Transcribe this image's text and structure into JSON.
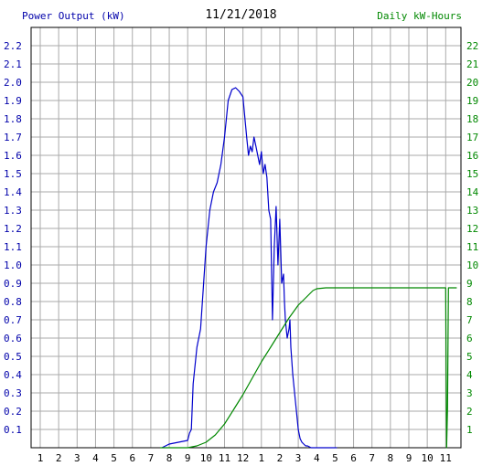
{
  "header": {
    "left_title": "Power Output (kW)",
    "date": "11/21/2018",
    "right_title": "Daily kW-Hours"
  },
  "colors": {
    "power": "#0000cc",
    "energy": "#008800",
    "grid": "#aaaaaa",
    "left_axis_text": "#0000aa",
    "right_axis_text": "#008800"
  },
  "chart_data": {
    "type": "line",
    "title": "11/21/2018",
    "grid": true,
    "x_ticks": [
      "1",
      "2",
      "3",
      "4",
      "5",
      "6",
      "7",
      "8",
      "9",
      "10",
      "11",
      "12",
      "1",
      "2",
      "3",
      "4",
      "5",
      "6",
      "7",
      "8",
      "9",
      "10",
      "11"
    ],
    "y_left": {
      "label": "Power Output (kW)",
      "ylim": [
        0,
        2.3
      ],
      "ticks": [
        "0.1",
        "0.2",
        "0.3",
        "0.4",
        "0.5",
        "0.6",
        "0.7",
        "0.8",
        "0.9",
        "1.0",
        "1.1",
        "1.2",
        "1.3",
        "1.4",
        "1.5",
        "1.6",
        "1.7",
        "1.8",
        "1.9",
        "2.0",
        "2.1",
        "2.2"
      ]
    },
    "y_right": {
      "label": "Daily kW-Hours",
      "ylim": [
        0,
        23
      ],
      "ticks": [
        "1",
        "2",
        "3",
        "4",
        "5",
        "6",
        "7",
        "8",
        "9",
        "10",
        "11",
        "12",
        "13",
        "14",
        "15",
        "16",
        "17",
        "18",
        "19",
        "20",
        "21",
        "22"
      ]
    },
    "series": [
      {
        "name": "Power Output (kW)",
        "axis": "left",
        "x": [
          7.6,
          8.0,
          8.5,
          9.0,
          9.1,
          9.2,
          9.3,
          9.5,
          9.7,
          9.8,
          10.0,
          10.2,
          10.4,
          10.6,
          10.8,
          11.0,
          11.2,
          11.4,
          11.6,
          11.8,
          12.0,
          12.2,
          12.3,
          12.4,
          12.5,
          12.6,
          12.7,
          12.8,
          12.9,
          13.0,
          13.1,
          13.2,
          13.3,
          13.4,
          13.5,
          13.6,
          13.7,
          13.8,
          13.9,
          14.0,
          14.1,
          14.2,
          14.25,
          14.3,
          14.4,
          14.5,
          14.55,
          14.6,
          14.7,
          14.8,
          14.9,
          15.0,
          15.1,
          15.2,
          15.3,
          15.4,
          15.5,
          15.7,
          15.9,
          16.1,
          16.3,
          16.6,
          16.8,
          17.1
        ],
        "values": [
          0.0,
          0.02,
          0.03,
          0.04,
          0.08,
          0.1,
          0.35,
          0.55,
          0.65,
          0.8,
          1.1,
          1.3,
          1.4,
          1.45,
          1.55,
          1.7,
          1.9,
          1.96,
          1.97,
          1.95,
          1.92,
          1.7,
          1.6,
          1.65,
          1.62,
          1.7,
          1.65,
          1.6,
          1.55,
          1.62,
          1.5,
          1.55,
          1.48,
          1.3,
          1.25,
          0.7,
          1.1,
          1.32,
          1.0,
          1.25,
          0.9,
          0.95,
          0.8,
          0.7,
          0.6,
          0.65,
          0.7,
          0.55,
          0.4,
          0.3,
          0.2,
          0.1,
          0.05,
          0.03,
          0.02,
          0.01,
          0.01,
          0.0,
          0.0,
          0.0,
          0.0,
          0.0,
          0.0,
          0.0
        ]
      },
      {
        "name": "Daily kW-Hours",
        "axis": "right",
        "x": [
          7.5,
          9.0,
          9.5,
          10.0,
          10.5,
          11.0,
          11.5,
          12.0,
          12.5,
          13.0,
          13.5,
          14.0,
          14.5,
          15.0,
          15.5,
          15.8,
          16.0,
          16.5,
          17.0,
          18.0,
          20.0,
          22.0,
          23.0,
          23.05,
          23.1,
          23.15,
          23.2,
          23.3,
          23.6
        ],
        "values": [
          0.0,
          0.0,
          0.1,
          0.3,
          0.7,
          1.3,
          2.1,
          2.9,
          3.8,
          4.7,
          5.5,
          6.3,
          7.1,
          7.8,
          8.3,
          8.6,
          8.7,
          8.75,
          8.75,
          8.75,
          8.75,
          8.75,
          8.75,
          0.0,
          2.2,
          8.75,
          8.75,
          8.75,
          8.75
        ]
      }
    ]
  }
}
